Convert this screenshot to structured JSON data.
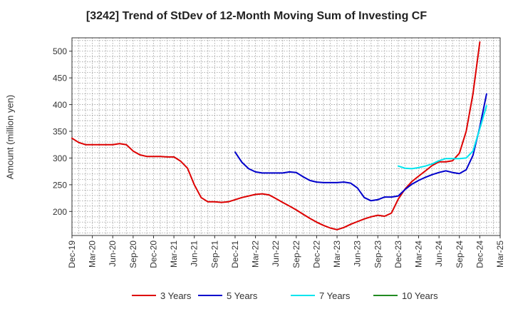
{
  "chart_data": {
    "type": "line",
    "title": "[3242]  Trend of StDev of 12-Month Moving Sum of Investing CF",
    "xlabel": "",
    "ylabel": "Amount (million yen)",
    "ylim": [
      155,
      525
    ],
    "yticks": [
      200,
      250,
      300,
      350,
      400,
      450,
      500
    ],
    "x_tick_labels": [
      "Dec-19",
      "Mar-20",
      "Jun-20",
      "Sep-20",
      "Dec-20",
      "Mar-21",
      "Jun-21",
      "Sep-21",
      "Dec-21",
      "Mar-22",
      "Jun-22",
      "Sep-22",
      "Dec-22",
      "Mar-23",
      "Jun-23",
      "Sep-23",
      "Dec-23",
      "Mar-24",
      "Jun-24",
      "Sep-24",
      "Dec-24",
      "Mar-25"
    ],
    "x_months": [
      "2019-12",
      "2020-01",
      "2020-02",
      "2020-03",
      "2020-04",
      "2020-05",
      "2020-06",
      "2020-07",
      "2020-08",
      "2020-09",
      "2020-10",
      "2020-11",
      "2020-12",
      "2021-01",
      "2021-02",
      "2021-03",
      "2021-04",
      "2021-05",
      "2021-06",
      "2021-07",
      "2021-08",
      "2021-09",
      "2021-10",
      "2021-11",
      "2021-12",
      "2022-01",
      "2022-02",
      "2022-03",
      "2022-04",
      "2022-05",
      "2022-06",
      "2022-07",
      "2022-08",
      "2022-09",
      "2022-10",
      "2022-11",
      "2022-12",
      "2023-01",
      "2023-02",
      "2023-03",
      "2023-04",
      "2023-05",
      "2023-06",
      "2023-07",
      "2023-08",
      "2023-09",
      "2023-10",
      "2023-11",
      "2023-12",
      "2024-01",
      "2024-02",
      "2024-03",
      "2024-04",
      "2024-05",
      "2024-06",
      "2024-07",
      "2024-08",
      "2024-09",
      "2024-10",
      "2024-11",
      "2024-12",
      "2025-01",
      "2025-02",
      "2025-03"
    ],
    "grid": true,
    "legend_position": "bottom",
    "series": [
      {
        "name": "3 Years",
        "color": "#dd0000",
        "values": [
          337,
          329,
          325,
          325,
          325,
          325,
          325,
          327,
          325,
          313,
          306,
          303,
          303,
          303,
          302,
          302,
          294,
          281,
          250,
          226,
          218,
          218,
          217,
          218,
          222,
          226,
          229,
          232,
          233,
          231,
          224,
          217,
          210,
          203,
          195,
          187,
          180,
          174,
          169,
          166,
          170,
          176,
          181,
          186,
          190,
          193,
          191,
          197,
          223,
          242,
          256,
          266,
          276,
          286,
          293,
          293,
          295,
          309,
          350,
          420,
          517,
          null,
          null,
          null
        ]
      },
      {
        "name": "5 Years",
        "color": "#0000cc",
        "values": [
          null,
          null,
          null,
          null,
          null,
          null,
          null,
          null,
          null,
          null,
          null,
          null,
          null,
          null,
          null,
          null,
          null,
          null,
          null,
          null,
          null,
          null,
          null,
          null,
          311,
          292,
          280,
          274,
          272,
          272,
          272,
          272,
          274,
          273,
          265,
          258,
          255,
          254,
          254,
          254,
          255,
          253,
          244,
          226,
          220,
          222,
          227,
          227,
          229,
          241,
          251,
          258,
          264,
          269,
          273,
          276,
          273,
          271,
          278,
          305,
          358,
          420,
          null,
          null
        ]
      },
      {
        "name": "7 Years",
        "color": "#00e5ee",
        "values": [
          null,
          null,
          null,
          null,
          null,
          null,
          null,
          null,
          null,
          null,
          null,
          null,
          null,
          null,
          null,
          null,
          null,
          null,
          null,
          null,
          null,
          null,
          null,
          null,
          null,
          null,
          null,
          null,
          null,
          null,
          null,
          null,
          null,
          null,
          null,
          null,
          null,
          null,
          null,
          null,
          null,
          null,
          null,
          null,
          null,
          null,
          null,
          null,
          285,
          281,
          280,
          282,
          285,
          289,
          295,
          299,
          299,
          299,
          300,
          313,
          355,
          398,
          null,
          null
        ]
      },
      {
        "name": "10 Years",
        "color": "#228b22",
        "values": []
      }
    ]
  }
}
